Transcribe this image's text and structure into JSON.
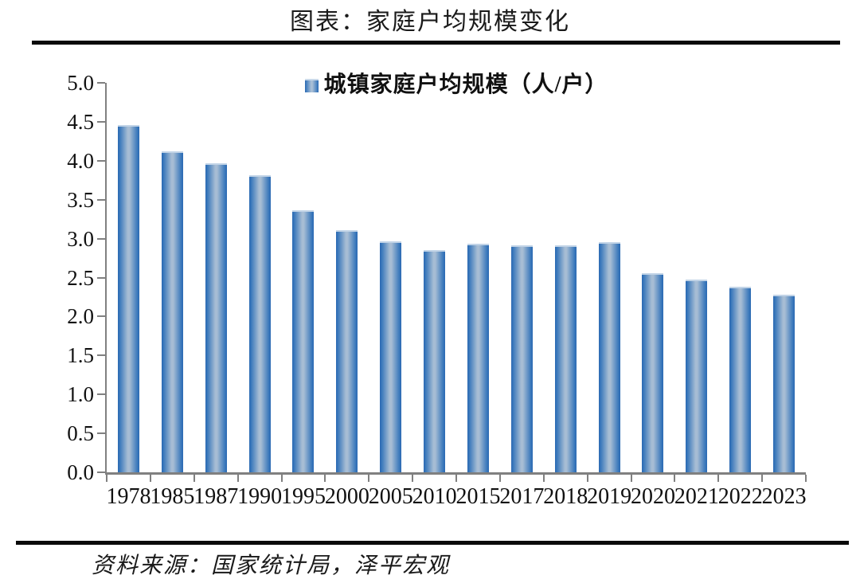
{
  "page": {
    "title": "图表：家庭户均规模变化",
    "source": "资料来源：国家统计局，泽平宏观"
  },
  "chart_data": {
    "type": "bar",
    "title": "图表：家庭户均规模变化",
    "legend": "城镇家庭户均规模（人/户）",
    "legend_position": "top-center",
    "categories": [
      "1978",
      "1985",
      "1987",
      "1990",
      "1995",
      "2000",
      "2005",
      "2010",
      "2015",
      "2017",
      "2018",
      "2019",
      "2020",
      "2021",
      "2022",
      "2023"
    ],
    "values": [
      4.46,
      4.12,
      3.97,
      3.81,
      3.36,
      3.11,
      2.97,
      2.85,
      2.93,
      2.91,
      2.91,
      2.95,
      2.56,
      2.47,
      2.38,
      2.28
    ],
    "xlabel": "",
    "ylabel": "",
    "ylim": [
      0,
      5
    ],
    "y_tick_labels": [
      "5.0",
      "4.5",
      "4.0",
      "3.5",
      "3.0",
      "2.5",
      "2.0",
      "1.5",
      "1.0",
      "0.5",
      "0.0"
    ],
    "grid": false,
    "colors": {
      "bar_edge": "#2a69b2",
      "bar_center": "#a7bdd4",
      "bar_top_cap": "#c2d4e7",
      "axis": "#808080",
      "rule": "#0a0a0a",
      "text": "#111111"
    },
    "source": "资料来源：国家统计局，泽平宏观"
  }
}
